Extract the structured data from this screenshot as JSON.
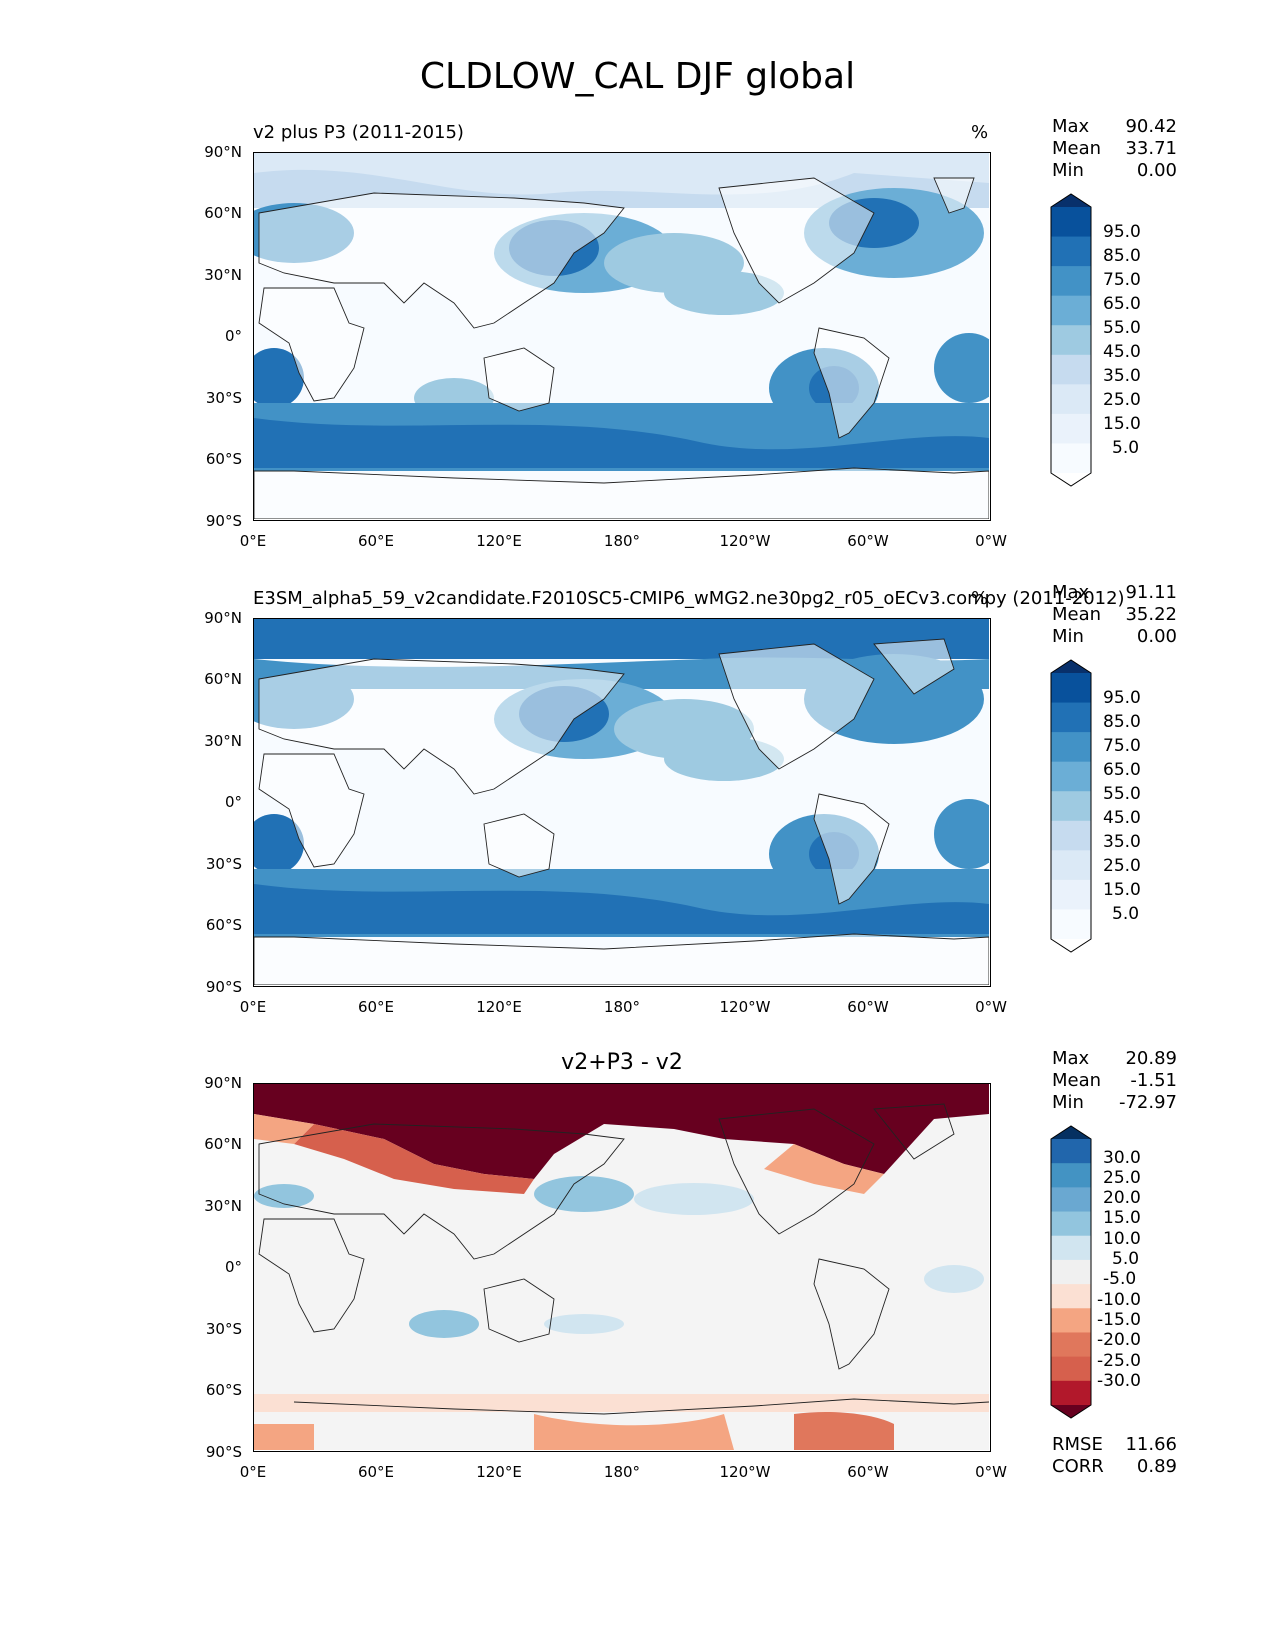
{
  "figure_title": "CLDLOW_CAL DJF global",
  "panels": [
    {
      "id": "test",
      "title_left": "v2 plus P3 (2011-2015)",
      "title_right": "%",
      "stats": [
        {
          "label": "Max",
          "value": "90.42"
        },
        {
          "label": "Mean",
          "value": "33.71"
        },
        {
          "label": "Min",
          "value": "0.00"
        }
      ],
      "colorbar": {
        "labels": [
          "95.0",
          "85.0",
          "75.0",
          "65.0",
          "55.0",
          "45.0",
          "35.0",
          "25.0",
          "15.0",
          "5.0"
        ],
        "colors": [
          "#08306b",
          "#08519c",
          "#2171b5",
          "#4292c6",
          "#6baed6",
          "#9ecae1",
          "#c6dbef",
          "#dbe9f6",
          "#eaf2fb",
          "#f7fbff",
          "#ffffff"
        ]
      }
    },
    {
      "id": "reference",
      "title_left": "E3SM_alpha5_59_v2candidate.F2010SC5-CMIP6_wMG2.ne30pg2_r05_oECv3.compy (2011-2012)",
      "title_right": "%",
      "stats": [
        {
          "label": "Max",
          "value": "91.11"
        },
        {
          "label": "Mean",
          "value": "35.22"
        },
        {
          "label": "Min",
          "value": "0.00"
        }
      ],
      "colorbar": {
        "labels": [
          "95.0",
          "85.0",
          "75.0",
          "65.0",
          "55.0",
          "45.0",
          "35.0",
          "25.0",
          "15.0",
          "5.0"
        ],
        "colors": [
          "#08306b",
          "#08519c",
          "#2171b5",
          "#4292c6",
          "#6baed6",
          "#9ecae1",
          "#c6dbef",
          "#dbe9f6",
          "#eaf2fb",
          "#f7fbff",
          "#ffffff"
        ]
      }
    },
    {
      "id": "difference",
      "title_center": "v2+P3 - v2",
      "stats": [
        {
          "label": "Max",
          "value": "20.89"
        },
        {
          "label": "Mean",
          "value": "-1.51"
        },
        {
          "label": "Min",
          "value": "-72.97"
        }
      ],
      "colorbar": {
        "labels": [
          "30.0",
          "25.0",
          "20.0",
          "15.0",
          "10.0",
          "5.0",
          "-5.0",
          "-10.0",
          "-15.0",
          "-20.0",
          "-25.0",
          "-30.0"
        ],
        "colors": [
          "#053061",
          "#2166ac",
          "#4393c3",
          "#6aa8d1",
          "#92c5de",
          "#d1e5f0",
          "#f0f0f0",
          "#fbe0d3",
          "#f4a582",
          "#e0775c",
          "#d6604d",
          "#b2182b",
          "#67001f"
        ]
      },
      "metrics": [
        {
          "label": "RMSE",
          "value": "11.66"
        },
        {
          "label": "CORR",
          "value": "0.89"
        }
      ]
    }
  ],
  "axes": {
    "lat_ticks": [
      "90°N",
      "60°N",
      "30°N",
      "0°",
      "30°S",
      "60°S",
      "90°S"
    ],
    "lon_ticks": [
      "0°E",
      "60°E",
      "120°E",
      "180°",
      "120°W",
      "60°W",
      "0°W"
    ]
  }
}
